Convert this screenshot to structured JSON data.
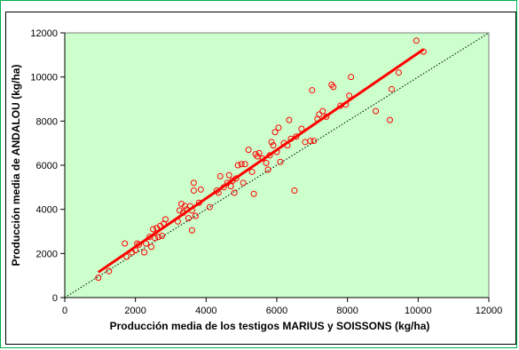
{
  "colors": {
    "plot_background": "#ccffcc",
    "outer_border": "#00b050",
    "marker": "#ff0000",
    "fit_line": "#ff0000",
    "reference_line": "#000000"
  },
  "chart_data": {
    "type": "scatter",
    "title": "",
    "xlabel": "Producción media de los testigos MARIUS y SOISSONS (kg/ha)",
    "ylabel": "Producción media de ANDALOU (kg/ha)",
    "xlim": [
      0,
      12000
    ],
    "ylim": [
      0,
      12000
    ],
    "xticks": [
      0,
      2000,
      4000,
      6000,
      8000,
      10000,
      12000
    ],
    "yticks": [
      0,
      2000,
      4000,
      6000,
      8000,
      10000,
      12000
    ],
    "xtick_labels": [
      "0",
      "2000",
      "4000",
      "6000",
      "8000",
      "10000",
      "12000"
    ],
    "ytick_labels": [
      "0",
      "2000",
      "4000",
      "6000",
      "8000",
      "10000",
      "12000"
    ],
    "grid": false,
    "legend": "none",
    "series": [
      {
        "kind": "scatter",
        "marker": "open-circle",
        "points": [
          [
            950,
            900
          ],
          [
            1250,
            1200
          ],
          [
            1700,
            2450
          ],
          [
            1750,
            1850
          ],
          [
            1900,
            2050
          ],
          [
            2000,
            2150
          ],
          [
            2050,
            2450
          ],
          [
            2100,
            2400
          ],
          [
            2250,
            2050
          ],
          [
            2300,
            2450
          ],
          [
            2400,
            2750
          ],
          [
            2450,
            2300
          ],
          [
            2500,
            3100
          ],
          [
            2550,
            2700
          ],
          [
            2600,
            3150
          ],
          [
            2650,
            2750
          ],
          [
            2700,
            3250
          ],
          [
            2750,
            2800
          ],
          [
            2800,
            3350
          ],
          [
            2850,
            3550
          ],
          [
            3200,
            3450
          ],
          [
            3250,
            3950
          ],
          [
            3300,
            4250
          ],
          [
            3350,
            3850
          ],
          [
            3400,
            4150
          ],
          [
            3450,
            4000
          ],
          [
            3500,
            3600
          ],
          [
            3550,
            4150
          ],
          [
            3600,
            3050
          ],
          [
            3600,
            3950
          ],
          [
            3650,
            4850
          ],
          [
            3650,
            5200
          ],
          [
            3700,
            3700
          ],
          [
            3800,
            4300
          ],
          [
            3850,
            4900
          ],
          [
            4100,
            4100
          ],
          [
            4300,
            4850
          ],
          [
            4350,
            4750
          ],
          [
            4400,
            5500
          ],
          [
            4500,
            5000
          ],
          [
            4600,
            5200
          ],
          [
            4650,
            5550
          ],
          [
            4700,
            5050
          ],
          [
            4750,
            5300
          ],
          [
            4800,
            4750
          ],
          [
            4850,
            5400
          ],
          [
            4900,
            6000
          ],
          [
            5000,
            6050
          ],
          [
            5050,
            5200
          ],
          [
            5100,
            6050
          ],
          [
            5200,
            6700
          ],
          [
            5300,
            5700
          ],
          [
            5350,
            4700
          ],
          [
            5400,
            6500
          ],
          [
            5450,
            6400
          ],
          [
            5500,
            6550
          ],
          [
            5600,
            6300
          ],
          [
            5700,
            6100
          ],
          [
            5750,
            5800
          ],
          [
            5800,
            6450
          ],
          [
            5850,
            7050
          ],
          [
            5900,
            6900
          ],
          [
            5950,
            7500
          ],
          [
            6000,
            6600
          ],
          [
            6050,
            7700
          ],
          [
            6100,
            6150
          ],
          [
            6200,
            7000
          ],
          [
            6300,
            6900
          ],
          [
            6350,
            8050
          ],
          [
            6400,
            7200
          ],
          [
            6500,
            4850
          ],
          [
            6550,
            7300
          ],
          [
            6700,
            7650
          ],
          [
            6800,
            7050
          ],
          [
            6950,
            7100
          ],
          [
            7000,
            9400
          ],
          [
            7050,
            7100
          ],
          [
            7150,
            8100
          ],
          [
            7200,
            8300
          ],
          [
            7300,
            8450
          ],
          [
            7400,
            8200
          ],
          [
            7550,
            9650
          ],
          [
            7600,
            9550
          ],
          [
            7800,
            8700
          ],
          [
            7950,
            8750
          ],
          [
            8050,
            9150
          ],
          [
            8100,
            10000
          ],
          [
            8800,
            8450
          ],
          [
            9200,
            8050
          ],
          [
            9250,
            9450
          ],
          [
            9450,
            10200
          ],
          [
            9950,
            11650
          ],
          [
            10150,
            11150
          ]
        ]
      },
      {
        "kind": "line",
        "role": "fit",
        "points": [
          [
            950,
            1150
          ],
          [
            10150,
            11250
          ]
        ]
      },
      {
        "kind": "line",
        "role": "reference",
        "style": "dotted",
        "points": [
          [
            0,
            0
          ],
          [
            12000,
            12000
          ]
        ]
      }
    ]
  }
}
